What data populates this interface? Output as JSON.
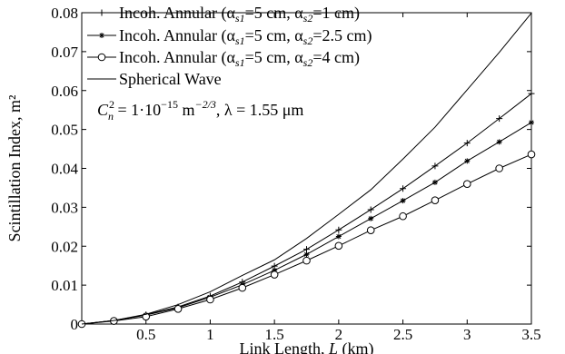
{
  "chart_data": {
    "type": "line",
    "xlabel": "Link Length, L (km)",
    "ylabel": "Scintillation  Index,  m²",
    "xlim": [
      0,
      3.5
    ],
    "ylim": [
      0,
      0.08
    ],
    "x_ticks": [
      "0.5",
      "1",
      "1.5",
      "2",
      "2.5",
      "3",
      "3.5"
    ],
    "y_ticks": [
      "0",
      "0.01",
      "0.02",
      "0.03",
      "0.04",
      "0.05",
      "0.06",
      "0.07",
      "0.08"
    ],
    "grid": false,
    "legend_position": "top-left",
    "annotation": "C_n² = 1·10⁻¹⁵ m⁻²ᐟ³, λ = 1.55 μm",
    "series": [
      {
        "name": "Incoh. Annular (α_s1 = 5 cm, α_s2 = 1 cm)",
        "marker": "plus",
        "x": [
          0,
          0.25,
          0.5,
          0.75,
          1,
          1.25,
          1.5,
          1.75,
          2,
          2.25,
          2.5,
          2.75,
          3,
          3.25,
          3.5
        ],
        "y": [
          0,
          0.0009,
          0.0024,
          0.0044,
          0.0072,
          0.0108,
          0.0149,
          0.0192,
          0.0242,
          0.0294,
          0.0348,
          0.0406,
          0.0465,
          0.0528,
          0.0592
        ]
      },
      {
        "name": "Incoh. Annular (α_s1 = 5 cm, α_s2 = 2.5 cm)",
        "marker": "star",
        "x": [
          0,
          0.25,
          0.5,
          0.75,
          1,
          1.25,
          1.5,
          1.75,
          2,
          2.25,
          2.5,
          2.75,
          3,
          3.25,
          3.5
        ],
        "y": [
          0,
          0.0009,
          0.0023,
          0.0042,
          0.0069,
          0.0101,
          0.0138,
          0.0179,
          0.0225,
          0.0271,
          0.0317,
          0.0364,
          0.0419,
          0.0468,
          0.0518
        ]
      },
      {
        "name": "Incoh. Annular (α_s1 = 5 cm, α_s2 = 4 cm)",
        "marker": "circle",
        "x": [
          0,
          0.25,
          0.5,
          0.75,
          1,
          1.25,
          1.5,
          1.75,
          2,
          2.25,
          2.5,
          2.75,
          3,
          3.25,
          3.5
        ],
        "y": [
          0,
          0.0008,
          0.0019,
          0.0039,
          0.0063,
          0.0093,
          0.0127,
          0.0163,
          0.0201,
          0.0241,
          0.0277,
          0.0318,
          0.036,
          0.04,
          0.0436
        ]
      },
      {
        "name": "Spherical Wave",
        "marker": "none",
        "x": [
          0,
          0.25,
          0.5,
          0.75,
          1,
          1.25,
          1.5,
          1.75,
          2,
          2.25,
          2.5,
          2.75,
          3,
          3.25,
          3.5
        ],
        "y": [
          0,
          0.0009,
          0.0025,
          0.005,
          0.0083,
          0.0125,
          0.0165,
          0.022,
          0.0282,
          0.0345,
          0.0424,
          0.0506,
          0.0602,
          0.0698,
          0.0799
        ]
      }
    ]
  }
}
